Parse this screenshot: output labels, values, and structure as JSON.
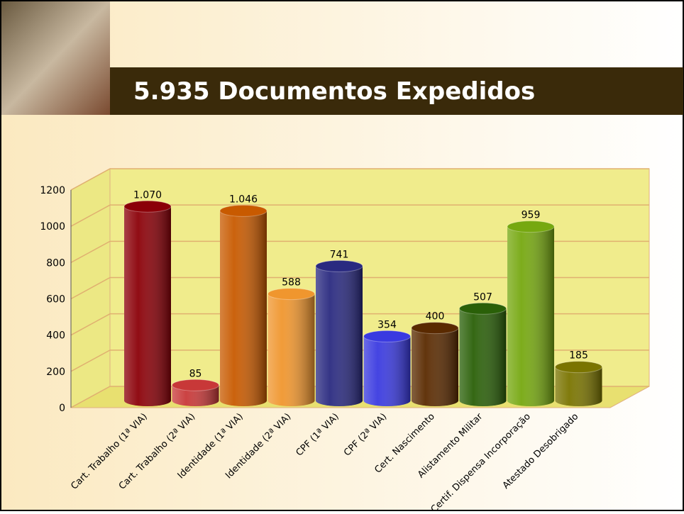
{
  "chart_data": {
    "type": "bar3d",
    "title": "5.935 Documentos Expedidos",
    "categories": [
      "Cart. Trabalho (1ª VIA)",
      "Cart. Trabalho (2ª VIA)",
      "Identidade  (1ª VIA)",
      "Identidade  (2ª VIA)",
      "CPF  (1ª VIA)",
      "CPF  (2ª VIA)",
      "Cert. Nascimento",
      "Alistamento Militar",
      "Certif. Dispensa Incorporação",
      "Atestado Desobrigado"
    ],
    "values": [
      1070,
      85,
      1046,
      588,
      741,
      354,
      400,
      507,
      959,
      185
    ],
    "value_labels": [
      "1.070",
      "85",
      "1.046",
      "588",
      "741",
      "354",
      "400",
      "507",
      "959",
      "185"
    ],
    "colors": [
      "#8b0008",
      "#c83838",
      "#c85a00",
      "#f0962e",
      "#2a2a80",
      "#3a3ae0",
      "#5a2a00",
      "#2a6008",
      "#76a810",
      "#7a7400"
    ],
    "ylim": [
      0,
      1200
    ],
    "yticks": [
      0,
      200,
      400,
      600,
      800,
      1000,
      1200
    ],
    "grid": true
  }
}
